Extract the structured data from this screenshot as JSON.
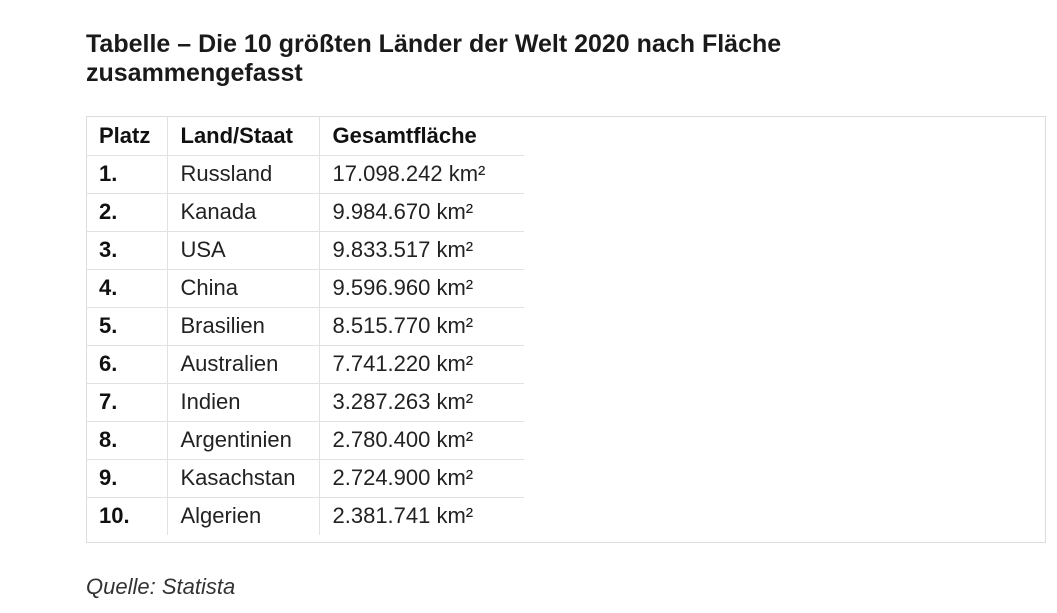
{
  "title": "Tabelle – Die 10 größten Länder der Welt 2020 nach Fläche zusammengefasst",
  "table": {
    "headers": [
      "Platz",
      "Land/Staat",
      "Gesamtfläche"
    ],
    "rows": [
      {
        "rank": "1.",
        "land": "Russland",
        "area": "17.098.242 km²"
      },
      {
        "rank": "2.",
        "land": "Kanada",
        "area": "9.984.670 km²"
      },
      {
        "rank": "3.",
        "land": "USA",
        "area": "9.833.517 km²"
      },
      {
        "rank": "4.",
        "land": "China",
        "area": "9.596.960 km²"
      },
      {
        "rank": "5.",
        "land": "Brasilien",
        "area": "8.515.770 km²"
      },
      {
        "rank": "6.",
        "land": "Australien",
        "area": "7.741.220 km²"
      },
      {
        "rank": "7.",
        "land": "Indien",
        "area": "3.287.263 km²"
      },
      {
        "rank": "8.",
        "land": "Argentinien",
        "area": "2.780.400 km²"
      },
      {
        "rank": "9.",
        "land": "Kasachstan",
        "area": "2.724.900 km²"
      },
      {
        "rank": "10.",
        "land": "Algerien",
        "area": "2.381.741 km²"
      }
    ]
  },
  "source": "Quelle: Statista"
}
